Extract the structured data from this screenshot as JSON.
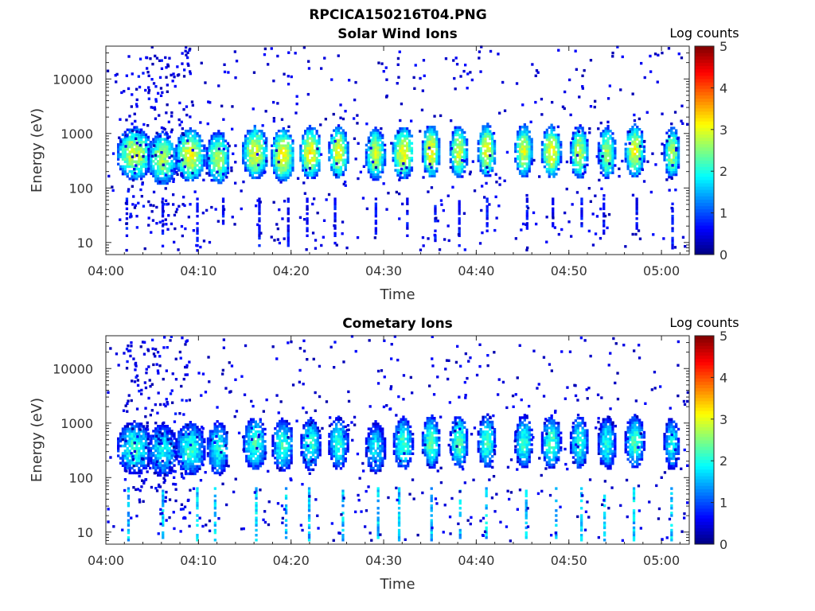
{
  "figure_title": "RPCICA150216T04.PNG",
  "chart_data": [
    {
      "type": "heatmap",
      "title": "Solar Wind Ions",
      "xlabel": "Time",
      "ylabel": "Energy (eV)",
      "xlim": [
        "04:00",
        "05:03"
      ],
      "x_ticks": [
        "04:00",
        "04:10",
        "04:20",
        "04:30",
        "04:40",
        "04:50",
        "05:00"
      ],
      "yscale": "log",
      "ylim": [
        6,
        40000
      ],
      "y_ticks": [
        "10",
        "100",
        "1000",
        "10000"
      ],
      "colorbar": {
        "label": "Log counts",
        "range": [
          0,
          5
        ],
        "ticks": [
          "0",
          "1",
          "2",
          "3",
          "4",
          "5"
        ],
        "colormap": "jet"
      },
      "grid": false,
      "bursts": [
        {
          "t": "04:03",
          "e": 400,
          "c": 3.2,
          "w": 1.8
        },
        {
          "t": "04:06",
          "e": 330,
          "c": 3.0,
          "w": 1.5
        },
        {
          "t": "04:09",
          "e": 380,
          "c": 3.3,
          "w": 1.5
        },
        {
          "t": "04:12",
          "e": 340,
          "c": 3.0,
          "w": 1.2
        },
        {
          "t": "04:16",
          "e": 420,
          "c": 3.3,
          "w": 1.3
        },
        {
          "t": "04:19",
          "e": 380,
          "c": 3.4,
          "w": 1.2
        },
        {
          "t": "04:22",
          "e": 420,
          "c": 3.4,
          "w": 1.1
        },
        {
          "t": "04:25",
          "e": 430,
          "c": 3.3,
          "w": 1.0
        },
        {
          "t": "04:29",
          "e": 390,
          "c": 3.1,
          "w": 1.0
        },
        {
          "t": "04:32",
          "e": 420,
          "c": 3.4,
          "w": 1.1
        },
        {
          "t": "04:35",
          "e": 450,
          "c": 3.4,
          "w": 0.9
        },
        {
          "t": "04:38",
          "e": 440,
          "c": 3.2,
          "w": 0.9
        },
        {
          "t": "04:41",
          "e": 460,
          "c": 3.3,
          "w": 0.9
        },
        {
          "t": "04:45",
          "e": 450,
          "c": 3.2,
          "w": 0.9
        },
        {
          "t": "04:48",
          "e": 440,
          "c": 3.4,
          "w": 1.0
        },
        {
          "t": "04:51",
          "e": 430,
          "c": 3.1,
          "w": 0.9
        },
        {
          "t": "04:54",
          "e": 420,
          "c": 3.0,
          "w": 0.9
        },
        {
          "t": "04:57",
          "e": 450,
          "c": 3.3,
          "w": 1.0
        },
        {
          "t": "05:01",
          "e": 430,
          "c": 3.0,
          "w": 0.8
        }
      ]
    },
    {
      "type": "heatmap",
      "title": "Cometary Ions",
      "xlabel": "Time",
      "ylabel": "Energy (eV)",
      "xlim": [
        "04:00",
        "05:03"
      ],
      "x_ticks": [
        "04:00",
        "04:10",
        "04:20",
        "04:30",
        "04:40",
        "04:50",
        "05:00"
      ],
      "yscale": "log",
      "ylim": [
        6,
        40000
      ],
      "y_ticks": [
        "10",
        "100",
        "1000",
        "10000"
      ],
      "colorbar": {
        "label": "Log counts",
        "range": [
          0,
          5
        ],
        "ticks": [
          "0",
          "1",
          "2",
          "3",
          "4",
          "5"
        ],
        "colormap": "jet"
      },
      "grid": false,
      "bursts": [
        {
          "t": "04:03",
          "e": 330,
          "c": 2.4,
          "w": 1.8
        },
        {
          "t": "04:06",
          "e": 300,
          "c": 2.2,
          "w": 1.5
        },
        {
          "t": "04:09",
          "e": 320,
          "c": 2.4,
          "w": 1.5
        },
        {
          "t": "04:12",
          "e": 330,
          "c": 2.3,
          "w": 1.1
        },
        {
          "t": "04:16",
          "e": 400,
          "c": 2.5,
          "w": 1.2
        },
        {
          "t": "04:19",
          "e": 370,
          "c": 2.4,
          "w": 1.1
        },
        {
          "t": "04:22",
          "e": 380,
          "c": 2.4,
          "w": 1.0
        },
        {
          "t": "04:25",
          "e": 400,
          "c": 2.3,
          "w": 1.0
        },
        {
          "t": "04:29",
          "e": 330,
          "c": 2.1,
          "w": 1.0
        },
        {
          "t": "04:32",
          "e": 400,
          "c": 2.5,
          "w": 1.0
        },
        {
          "t": "04:35",
          "e": 420,
          "c": 2.6,
          "w": 0.9
        },
        {
          "t": "04:38",
          "e": 430,
          "c": 2.6,
          "w": 0.9
        },
        {
          "t": "04:41",
          "e": 440,
          "c": 2.5,
          "w": 0.9
        },
        {
          "t": "04:45",
          "e": 430,
          "c": 2.4,
          "w": 0.9
        },
        {
          "t": "04:48",
          "e": 420,
          "c": 2.5,
          "w": 1.0
        },
        {
          "t": "04:51",
          "e": 420,
          "c": 2.4,
          "w": 0.9
        },
        {
          "t": "04:54",
          "e": 400,
          "c": 2.3,
          "w": 0.9
        },
        {
          "t": "04:57",
          "e": 430,
          "c": 2.5,
          "w": 1.0
        },
        {
          "t": "05:01",
          "e": 400,
          "c": 2.2,
          "w": 0.8
        }
      ]
    }
  ]
}
